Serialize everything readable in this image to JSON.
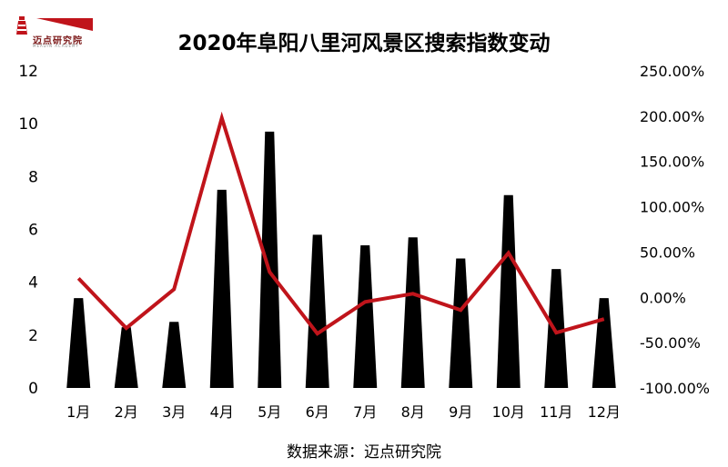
{
  "logo": {
    "brand": "迈点研究院",
    "brand_en": "MEADIN ACADEMY"
  },
  "chart_data": {
    "type": "bar+line",
    "title": "2020年阜阳八里河风景区搜索指数变动",
    "source": "数据来源：迈点研究院",
    "categories": [
      "1月",
      "2月",
      "3月",
      "4月",
      "5月",
      "6月",
      "7月",
      "8月",
      "9月",
      "10月",
      "11月",
      "12月"
    ],
    "series": [
      {
        "type": "bar",
        "axis": "left",
        "color": "#000000",
        "values": [
          3.4,
          2.3,
          2.5,
          7.5,
          9.7,
          5.8,
          5.4,
          5.7,
          4.9,
          7.3,
          4.5,
          3.4
        ]
      },
      {
        "type": "line",
        "axis": "right",
        "color": "#c0141b",
        "values": [
          21,
          -34,
          9,
          198,
          28,
          -40,
          -5,
          4,
          -14,
          49,
          -39,
          -24
        ]
      }
    ],
    "y_left": {
      "min": 0,
      "max": 12,
      "ticks": [
        "0",
        "2",
        "4",
        "6",
        "8",
        "10",
        "12"
      ]
    },
    "y_right": {
      "min": -100,
      "max": 250,
      "ticks": [
        "-100.00%",
        "-50.00%",
        "0.00%",
        "50.00%",
        "100.00%",
        "150.00%",
        "200.00%",
        "250.00%"
      ]
    },
    "grid": false,
    "legend": "none"
  }
}
